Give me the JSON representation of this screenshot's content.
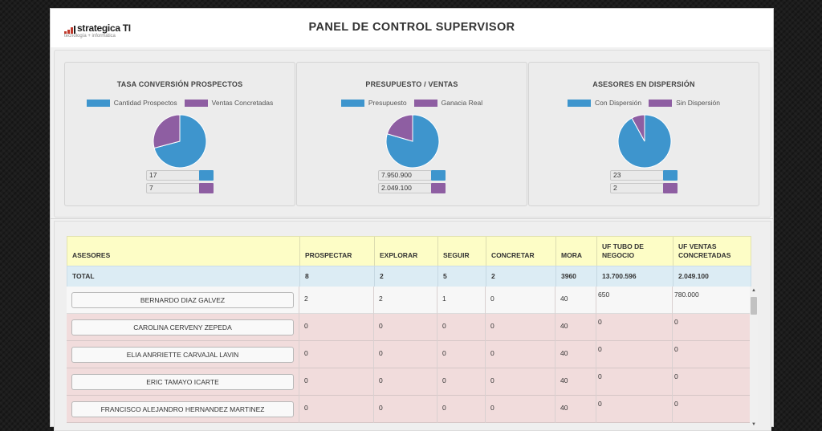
{
  "header": {
    "title": "PANEL DE CONTROL SUPERVISOR",
    "logo_name": "strategica TI",
    "logo_tagline": "tecnología + informática"
  },
  "colors": {
    "blue": "#3e95cd",
    "purple": "#8e5ea2"
  },
  "cards": [
    {
      "title": "TASA CONVERSIÓN PROSPECTOS",
      "legend": [
        "Cantidad Prospectos",
        "Ventas Concretadas"
      ],
      "values_display": [
        "17",
        "7"
      ]
    },
    {
      "title": "PRESUPUESTO / VENTAS",
      "legend": [
        "Presupuesto",
        "Ganacia Real"
      ],
      "values_display": [
        "7.950.900",
        "2.049.100"
      ]
    },
    {
      "title": "ASESORES EN DISPERSIÓN",
      "legend": [
        "Con Dispersión",
        "Sin Dispersión"
      ],
      "values_display": [
        "23",
        "2"
      ]
    }
  ],
  "chart_data": [
    {
      "type": "pie",
      "categories": [
        "Cantidad Prospectos",
        "Ventas Concretadas"
      ],
      "values": [
        17,
        7
      ]
    },
    {
      "type": "pie",
      "categories": [
        "Presupuesto",
        "Ganacia Real"
      ],
      "values": [
        7950900,
        2049100
      ]
    },
    {
      "type": "pie",
      "categories": [
        "Con Dispersión",
        "Sin Dispersión"
      ],
      "values": [
        23,
        2
      ]
    }
  ],
  "table": {
    "headers": [
      "ASESORES",
      "PROSPECTAR",
      "EXPLORAR",
      "SEGUIR",
      "CONCRETAR",
      "MORA",
      "UF TUBO DE NEGOCIO",
      "UF VENTAS CONCRETADAS"
    ],
    "total": [
      "TOTAL",
      "8",
      "2",
      "5",
      "2",
      "3960",
      "13.700.596",
      "2.049.100"
    ],
    "rows": [
      {
        "name": "BERNARDO DIAZ GALVEZ",
        "cells": [
          "2",
          "2",
          "1",
          "0",
          "40",
          "650",
          "780.000"
        ]
      },
      {
        "name": "CAROLINA CERVENY ZEPEDA",
        "cells": [
          "0",
          "0",
          "0",
          "0",
          "40",
          "0",
          "0"
        ]
      },
      {
        "name": "ELIA ANRRIETTE CARVAJAL LAVIN",
        "cells": [
          "0",
          "0",
          "0",
          "0",
          "40",
          "0",
          "0"
        ]
      },
      {
        "name": "ERIC TAMAYO ICARTE",
        "cells": [
          "0",
          "0",
          "0",
          "0",
          "40",
          "0",
          "0"
        ]
      },
      {
        "name": "FRANCISCO ALEJANDRO HERNANDEZ MARTINEZ",
        "cells": [
          "0",
          "0",
          "0",
          "0",
          "40",
          "0",
          "0"
        ]
      }
    ]
  }
}
